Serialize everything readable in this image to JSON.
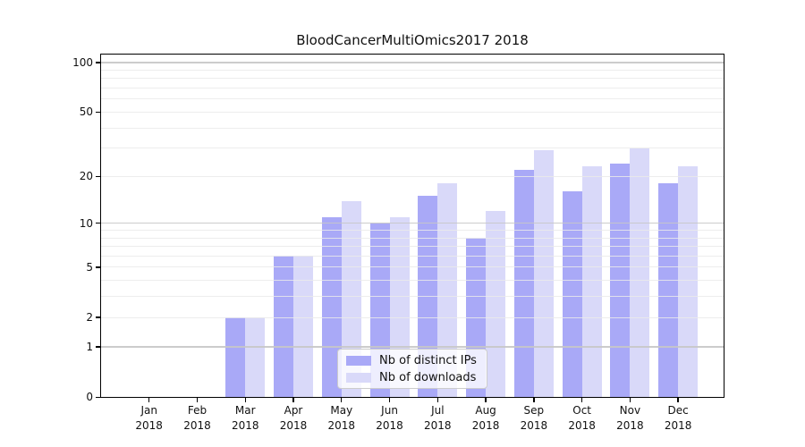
{
  "chart_data": {
    "type": "bar",
    "title": "BloodCancerMultiOmics2017 2018",
    "categories": [
      "Jan",
      "Feb",
      "Mar",
      "Apr",
      "May",
      "Jun",
      "Jul",
      "Aug",
      "Sep",
      "Oct",
      "Nov",
      "Dec"
    ],
    "category_year": "2018",
    "series": [
      {
        "name": "Nb of distinct IPs",
        "color": "#a9a9f7",
        "values": [
          0,
          0,
          2,
          6,
          11,
          10,
          15,
          8,
          22,
          16,
          24,
          18
        ]
      },
      {
        "name": "Nb of downloads",
        "color": "#d9d9f9",
        "values": [
          0,
          0,
          2,
          6,
          14,
          11,
          18,
          12,
          29,
          23,
          30,
          23
        ]
      }
    ],
    "xlabel": "",
    "ylabel": "",
    "yscale": "log1p",
    "ylim": [
      0,
      112
    ],
    "y_ticks": [
      0,
      1,
      2,
      5,
      10,
      20,
      50,
      100
    ],
    "y_major_gridlines": [
      1,
      10,
      100
    ],
    "y_minor_gridlines": [
      2,
      3,
      4,
      5,
      6,
      7,
      8,
      9,
      20,
      30,
      40,
      50,
      60,
      70,
      80,
      90
    ],
    "grid": "on",
    "legend_position": "lower center"
  }
}
